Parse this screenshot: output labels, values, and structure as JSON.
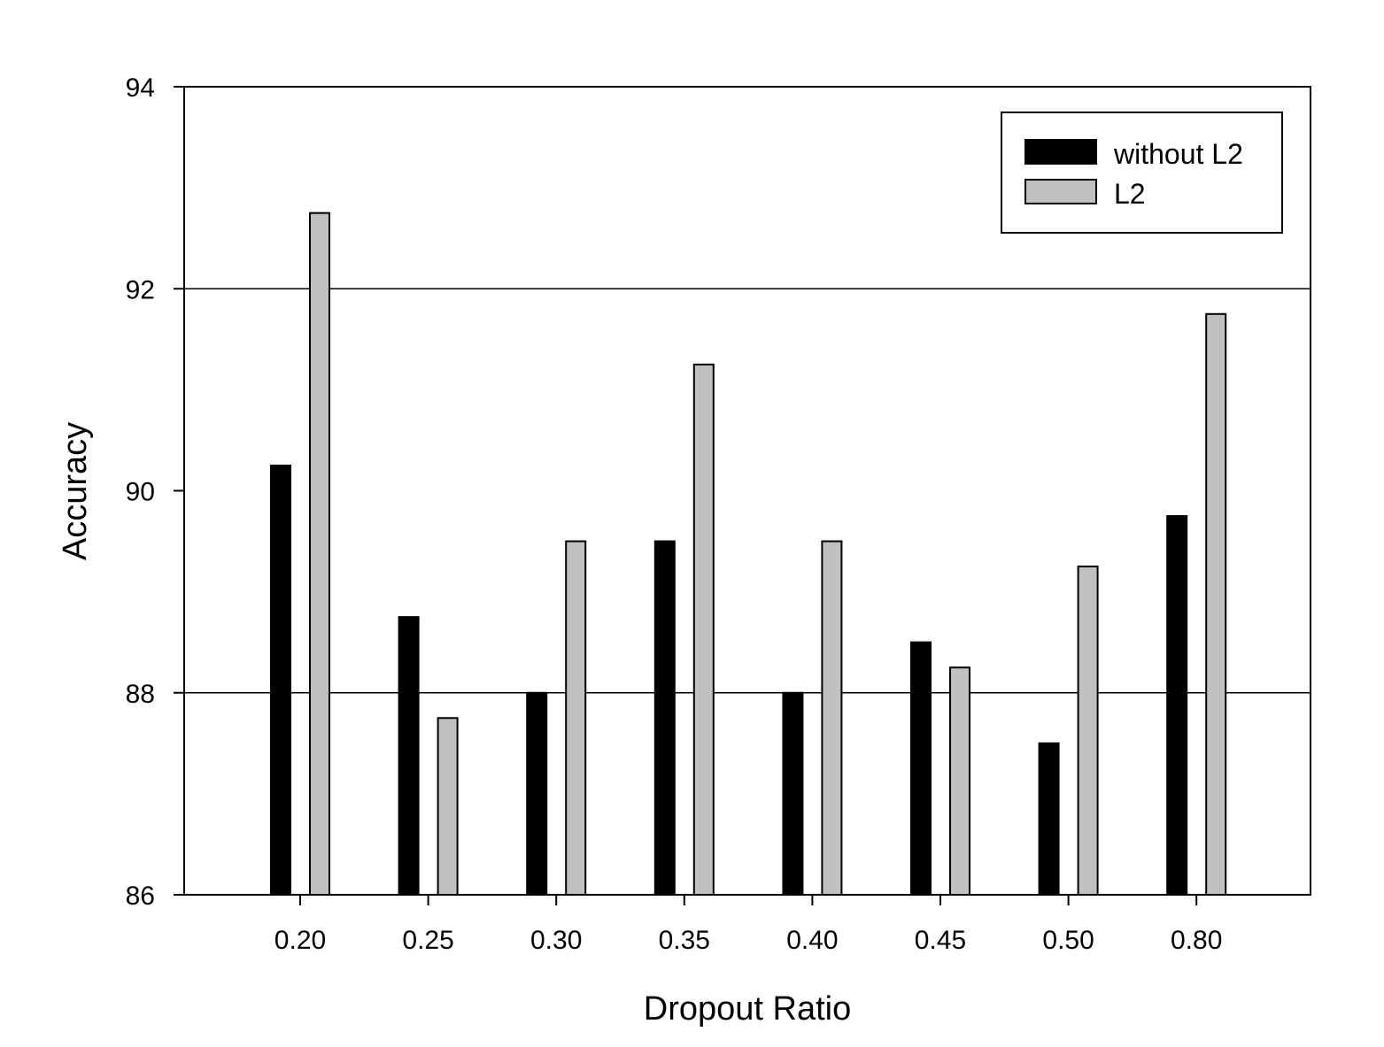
{
  "chart_data": {
    "type": "bar",
    "title": "",
    "xlabel": "Dropout Ratio",
    "ylabel": "Accuracy",
    "categories": [
      "0.20",
      "0.25",
      "0.30",
      "0.35",
      "0.40",
      "0.45",
      "0.50",
      "0.80"
    ],
    "series": [
      {
        "name": "without L2",
        "color": "#000000",
        "values": [
          90.25,
          88.75,
          88.0,
          89.5,
          88.0,
          88.5,
          87.5,
          89.75
        ]
      },
      {
        "name": "L2",
        "color": "#c0c0c0",
        "values": [
          92.75,
          87.75,
          89.5,
          91.25,
          89.5,
          88.25,
          89.25,
          91.75
        ]
      }
    ],
    "ylim": [
      86,
      94
    ],
    "yticks": [
      "86",
      "88",
      "90",
      "92",
      "94"
    ],
    "grid": "horizontal at 88 and 92",
    "legend_position": "top-right"
  }
}
